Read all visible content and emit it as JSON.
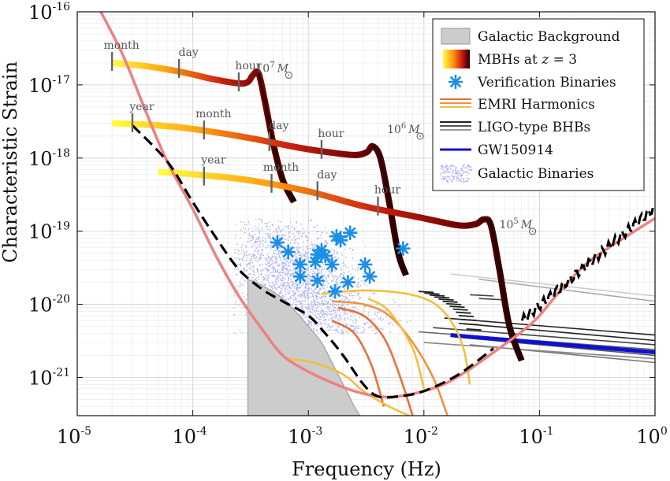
{
  "chart_data": {
    "type": "line",
    "title": "",
    "xlabel": "Frequency (Hz)",
    "ylabel": "Characteristic Strain",
    "xscale": "log",
    "yscale": "log",
    "xlim": [
      1e-05,
      1
    ],
    "ylim": [
      3e-22,
      1e-16
    ],
    "grid": true,
    "legend_position": "top-right",
    "x_ticks": [
      {
        "value": 1e-05,
        "base": "10",
        "exp": "-5"
      },
      {
        "value": 0.0001,
        "base": "10",
        "exp": "-4"
      },
      {
        "value": 0.001,
        "base": "10",
        "exp": "-3"
      },
      {
        "value": 0.01,
        "base": "10",
        "exp": "-2"
      },
      {
        "value": 0.1,
        "base": "10",
        "exp": "-1"
      },
      {
        "value": 1,
        "base": "10",
        "exp": "0"
      }
    ],
    "y_ticks": [
      {
        "value": 1e-21,
        "base": "10",
        "exp": "-21"
      },
      {
        "value": 1e-20,
        "base": "10",
        "exp": "-20"
      },
      {
        "value": 1e-19,
        "base": "10",
        "exp": "-19"
      },
      {
        "value": 1e-18,
        "base": "10",
        "exp": "-18"
      },
      {
        "value": 1e-17,
        "base": "10",
        "exp": "-17"
      },
      {
        "value": 1e-16,
        "base": "10",
        "exp": "-16"
      }
    ],
    "legend": [
      {
        "label": "Galactic Background",
        "kind": "patch",
        "color": "#cccccc"
      },
      {
        "label": "MBHs at z = 3",
        "kind": "gradient",
        "colors": [
          "#ffff30",
          "#ff8000",
          "#cc1010",
          "#2a0000"
        ]
      },
      {
        "label": "Verification Binaries",
        "kind": "marker",
        "color": "#1a8fe8"
      },
      {
        "label": "EMRI Harmonics",
        "kind": "lines",
        "colors": [
          "#e8703a",
          "#f09040",
          "#f0c040"
        ]
      },
      {
        "label": "LIGO-type BHBs",
        "kind": "lines",
        "colors": [
          "#222222",
          "#555555",
          "#999999"
        ]
      },
      {
        "label": "GW150914",
        "kind": "line",
        "color": "#1010d0"
      },
      {
        "label": "Galactic Binaries",
        "kind": "dots",
        "color": "#aab0f0"
      }
    ],
    "colors": {
      "lisa_sensitivity": "#f08080",
      "lisa_total": "#000000",
      "galactic_background": "#cccccc",
      "verification_binaries": "#1a8fe8",
      "galactic_binaries": "#aab0f0",
      "gw150914": "#1010d0"
    },
    "sensitivity_curve": {
      "x": [
        1.6e-05,
        2.5e-05,
        4e-05,
        6e-05,
        0.0001,
        0.00016,
        0.00025,
        0.0004,
        0.0006,
        0.001,
        0.0016,
        0.0025,
        0.004,
        0.006,
        0.01,
        0.016,
        0.025,
        0.04,
        0.06,
        0.08,
        0.1,
        0.15,
        0.25,
        0.4,
        0.6,
        1
      ],
      "y": [
        1e-16,
        2.5e-17,
        4e-18,
        9e-19,
        2e-19,
        4.5e-20,
        1.3e-20,
        4.5e-21,
        2e-21,
        1.2e-21,
        8.5e-22,
        6.5e-22,
        5.5e-22,
        5.5e-22,
        6.5e-22,
        8.5e-22,
        1.3e-21,
        2.2e-21,
        3.5e-21,
        5e-21,
        7e-21,
        1.5e-20,
        3.5e-20,
        6e-20,
        9e-20,
        1.5e-19
      ]
    },
    "total_curve": {
      "x": [
        3e-05,
        6e-05,
        0.0001,
        0.00016,
        0.00025,
        0.0004,
        0.0006,
        0.001,
        0.0014,
        0.002,
        0.003,
        0.004,
        0.006,
        0.01,
        0.02,
        0.04
      ],
      "y": [
        2.8e-18,
        9e-19,
        2.5e-19,
        8e-20,
        3e-20,
        1.6e-20,
        1.1e-20,
        7e-21,
        4e-21,
        2e-21,
        8e-22,
        5.5e-22,
        5.5e-22,
        6.5e-22,
        1.1e-21,
        2.5e-21
      ]
    },
    "galactic_background": {
      "x": [
        0.0003,
        0.0004,
        0.0006,
        0.0008,
        0.001,
        0.0013,
        0.0016,
        0.002,
        0.0025,
        0.0028
      ],
      "y": [
        2.2e-20,
        1.8e-20,
        1.2e-20,
        7.5e-21,
        5e-21,
        3e-21,
        1.6e-21,
        8e-22,
        4e-22,
        3e-22
      ]
    },
    "mbh_tracks": [
      {
        "label_mass": "10",
        "label_exp": "7",
        "label_unit": "M",
        "label_x": 0.00035,
        "label_y": 1.5e-17,
        "x": [
          2e-05,
          4e-05,
          8e-05,
          0.00015,
          0.00025,
          0.0003,
          0.00033,
          0.00037,
          0.00042,
          0.0005,
          0.0006,
          0.00075
        ],
        "y": [
          2e-17,
          1.8e-17,
          1.5e-17,
          1.2e-17,
          1.05e-17,
          1.1e-17,
          1.35e-17,
          1.45e-17,
          6e-18,
          1.5e-18,
          5e-19,
          2.5e-19
        ]
      },
      {
        "label_mass": "10",
        "label_exp": "6",
        "label_unit": "M",
        "label_x": 0.0048,
        "label_y": 2.2e-18,
        "x": [
          2e-05,
          5e-05,
          0.0001,
          0.0003,
          0.0008,
          0.0015,
          0.0025,
          0.0032,
          0.0036,
          0.0042,
          0.005,
          0.006,
          0.007
        ],
        "y": [
          3e-18,
          2.8e-18,
          2.5e-18,
          1.9e-18,
          1.4e-18,
          1.2e-18,
          1.1e-18,
          1.2e-18,
          1.45e-18,
          1e-18,
          2.5e-19,
          5e-20,
          2.5e-20
        ]
      },
      {
        "label_mass": "10",
        "label_exp": "5",
        "label_unit": "M",
        "label_x": 0.045,
        "label_y": 1.1e-19,
        "x": [
          5e-05,
          0.0001,
          0.0003,
          0.001,
          0.003,
          0.01,
          0.02,
          0.028,
          0.033,
          0.038,
          0.045,
          0.055,
          0.07
        ],
        "y": [
          6.5e-19,
          6e-19,
          5e-19,
          3.5e-19,
          2.2e-19,
          1.5e-19,
          1.2e-19,
          1.25e-19,
          1.45e-19,
          1.2e-19,
          3e-20,
          5e-21,
          1.7e-21
        ]
      }
    ],
    "time_markers": [
      {
        "label": "month",
        "x": 2e-05,
        "y": 2e-17
      },
      {
        "label": "day",
        "x": 7.6e-05,
        "y": 1.6e-17
      },
      {
        "label": "hour",
        "x": 0.00025,
        "y": 1.05e-17
      },
      {
        "label": "year",
        "x": 3e-05,
        "y": 2.9e-18
      },
      {
        "label": "month",
        "x": 0.000125,
        "y": 2.3e-18
      },
      {
        "label": "day",
        "x": 0.00046,
        "y": 1.6e-18
      },
      {
        "label": "hour",
        "x": 0.0013,
        "y": 1.25e-18
      },
      {
        "label": "year",
        "x": 0.000125,
        "y": 5.4e-19
      },
      {
        "label": "month",
        "x": 0.00048,
        "y": 4.3e-19
      },
      {
        "label": "day",
        "x": 0.0012,
        "y": 3.4e-19
      },
      {
        "label": "hour",
        "x": 0.004,
        "y": 2.1e-19
      }
    ],
    "verification_binaries": {
      "x": [
        0.00054,
        0.00067,
        0.00085,
        0.0013,
        0.0012,
        0.00175,
        0.0019,
        0.0023,
        0.0016,
        0.00115,
        0.00085,
        0.0012,
        0.0022,
        0.0031,
        0.0034,
        0.0017,
        0.0066,
        0.0014
      ],
      "y": [
        7e-20,
        5.2e-20,
        3.5e-20,
        5.5e-20,
        4.8e-20,
        8.5e-20,
        7.5e-20,
        9.5e-20,
        3.5e-20,
        3.8e-20,
        2.4e-20,
        2.1e-20,
        2e-20,
        3.5e-20,
        2.4e-20,
        1.5e-20,
        5.8e-20,
        4.6e-20
      ]
    },
    "emri_harmonics": [
      {
        "color": "#f0c040",
        "x": [
          0.0013,
          0.003,
          0.007,
          0.012,
          0.017,
          0.022,
          0.025
        ],
        "y": [
          1.4e-20,
          1.55e-20,
          1.4e-20,
          1.05e-20,
          6e-21,
          2.5e-21,
          8e-22
        ]
      },
      {
        "color": "#f09040",
        "x": [
          0.0016,
          0.003,
          0.005,
          0.008,
          0.012,
          0.016
        ],
        "y": [
          1.1e-20,
          1e-20,
          7e-21,
          3e-21,
          1e-21,
          3e-22
        ]
      },
      {
        "color": "#e8703a",
        "x": [
          0.0018,
          0.003,
          0.0045,
          0.006,
          0.008
        ],
        "y": [
          9e-21,
          7e-21,
          3.5e-21,
          1.2e-21,
          3e-22
        ]
      },
      {
        "color": "#e8703a",
        "x": [
          0.0016,
          0.0025,
          0.0035,
          0.0045
        ],
        "y": [
          6e-21,
          4e-21,
          1.5e-21,
          4e-22
        ]
      },
      {
        "color": "#f0c040",
        "x": [
          0.00065,
          0.0011,
          0.002,
          0.003,
          0.005,
          0.0075
        ],
        "y": [
          1.8e-21,
          1.6e-21,
          1.1e-21,
          6.5e-22,
          4e-22,
          3e-22
        ]
      },
      {
        "color": "#f0c040",
        "x": [
          0.0033,
          0.005,
          0.008,
          0.01
        ],
        "y": [
          1.2e-20,
          8e-21,
          2.5e-21,
          7e-22
        ]
      }
    ],
    "ligo_bhbs": [
      {
        "color": "#222222",
        "x": [
          0.015,
          1
        ],
        "y": [
          6.5e-21,
          3.8e-21
        ]
      },
      {
        "color": "#222222",
        "x": [
          0.02,
          1
        ],
        "y": [
          5.5e-21,
          3.2e-21
        ]
      },
      {
        "color": "#444444",
        "x": [
          0.012,
          1
        ],
        "y": [
          4.8e-21,
          2.8e-21
        ]
      },
      {
        "color": "#555555",
        "x": [
          0.018,
          1
        ],
        "y": [
          3.6e-21,
          2e-21
        ]
      },
      {
        "color": "#666666",
        "x": [
          0.009,
          1
        ],
        "y": [
          4.2e-21,
          2.4e-21
        ]
      },
      {
        "color": "#777777",
        "x": [
          0.025,
          1
        ],
        "y": [
          2.8e-21,
          1.6e-21
        ]
      },
      {
        "color": "#888888",
        "x": [
          0.01,
          1
        ],
        "y": [
          3e-21,
          1.8e-21
        ]
      },
      {
        "color": "#aaaaaa",
        "x": [
          0.03,
          1
        ],
        "y": [
          2.2e-20,
          1.1e-20
        ]
      },
      {
        "color": "#cccccc",
        "x": [
          0.017,
          1
        ],
        "y": [
          2.6e-20,
          1.3e-20
        ]
      },
      {
        "color": "#444444",
        "x": [
          0.03,
          0.05
        ],
        "y": [
          1.2e-20,
          1.15e-20
        ]
      },
      {
        "color": "#444444",
        "x": [
          0.025,
          0.04
        ],
        "y": [
          1.35e-20,
          1.3e-20
        ]
      }
    ],
    "gw150914": {
      "x": [
        0.017,
        1
      ],
      "y": [
        3.8e-21,
        2.2e-21
      ]
    }
  }
}
